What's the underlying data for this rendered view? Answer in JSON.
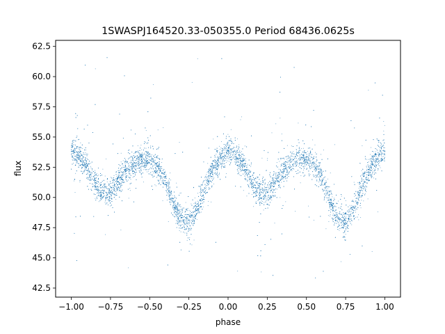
{
  "chart_data": {
    "type": "scatter",
    "title": "1SWASPJ164520.33-050355.0 Period 68436.0625s",
    "xlabel": "phase",
    "ylabel": "flux",
    "xlim": [
      -1.1,
      1.1
    ],
    "ylim": [
      41.75,
      63.0
    ],
    "grid": false,
    "legend": "none",
    "point_color": "#1f77b4",
    "x_ticks": [
      -1.0,
      -0.75,
      -0.5,
      -0.25,
      0.0,
      0.25,
      0.5,
      0.75,
      1.0
    ],
    "x_tick_labels": [
      "−1.00",
      "−0.75",
      "−0.50",
      "−0.25",
      "0.00",
      "0.25",
      "0.50",
      "0.75",
      "1.00"
    ],
    "y_ticks": [
      42.5,
      45.0,
      47.5,
      50.0,
      52.5,
      55.0,
      57.5,
      60.0,
      62.5
    ],
    "y_tick_labels": [
      "42.5",
      "45.0",
      "47.5",
      "50.0",
      "52.5",
      "55.0",
      "57.5",
      "60.0",
      "62.5"
    ],
    "series": [
      {
        "x": [
          -1.0,
          -0.95,
          -0.9,
          -0.85,
          -0.8,
          -0.75,
          -0.7,
          -0.65,
          -0.6,
          -0.55,
          -0.5,
          -0.45,
          -0.4,
          -0.35,
          -0.3,
          -0.25,
          -0.2,
          -0.15,
          -0.1,
          -0.05,
          0.0,
          0.05,
          0.1,
          0.15,
          0.2,
          0.25,
          0.3,
          0.35,
          0.4,
          0.45,
          0.5,
          0.55,
          0.6,
          0.65,
          0.7,
          0.75,
          0.8,
          0.85,
          0.9,
          0.95,
          1.0
        ],
        "y": [
          53.8,
          53.4,
          52.6,
          51.3,
          50.4,
          50.4,
          51.3,
          52.3,
          52.9,
          53.2,
          53.1,
          52.6,
          51.4,
          49.6,
          48.3,
          47.9,
          48.9,
          50.8,
          52.3,
          53.2,
          53.8,
          53.4,
          52.6,
          51.3,
          50.4,
          50.4,
          51.3,
          52.3,
          52.9,
          53.2,
          53.1,
          52.6,
          51.4,
          49.6,
          48.3,
          47.9,
          48.9,
          50.8,
          52.3,
          53.2,
          53.8
        ]
      }
    ]
  }
}
